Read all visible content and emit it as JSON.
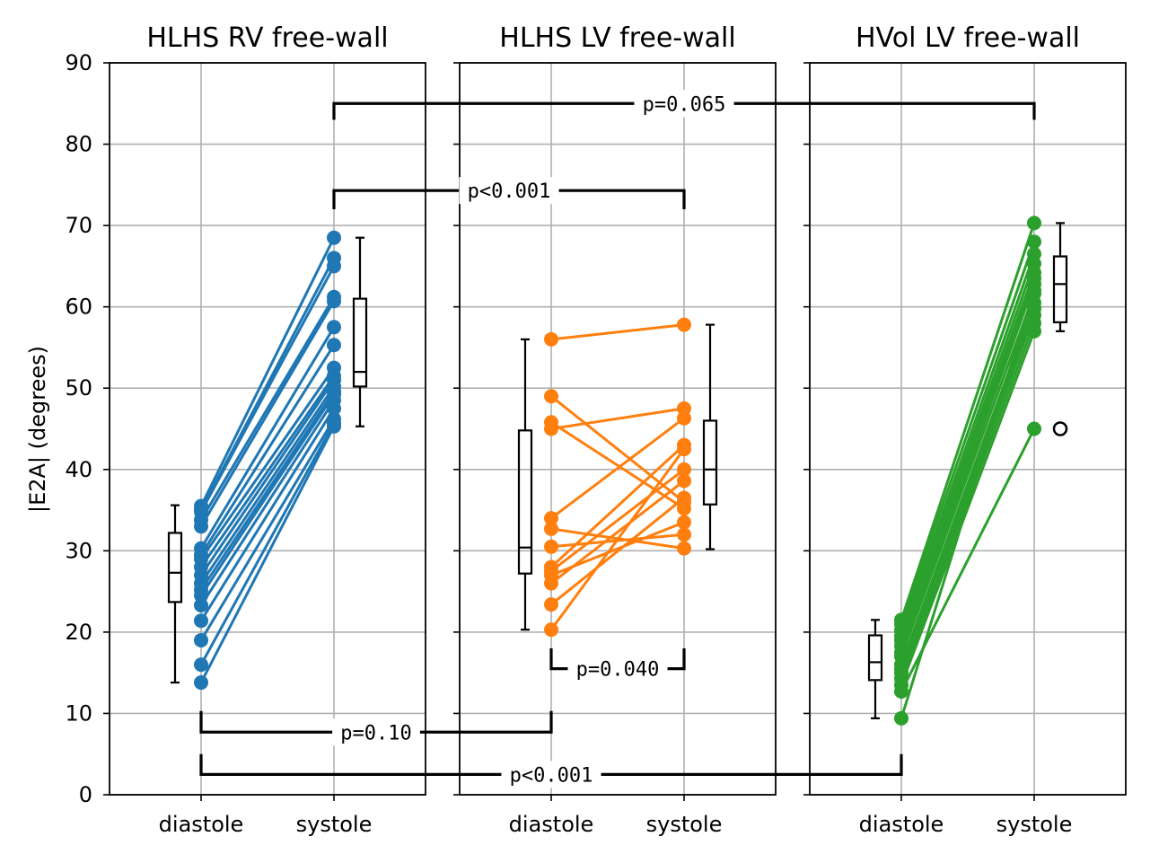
{
  "chart_data": {
    "type": "line",
    "ylabel": "|E2A| (degrees)",
    "ylim": [
      0,
      90
    ],
    "yticks": [
      "0",
      "10",
      "20",
      "30",
      "40",
      "50",
      "60",
      "70",
      "80",
      "90"
    ],
    "grid": true,
    "panels": [
      {
        "title": "HLHS RV free-wall",
        "color": "#1f77b4",
        "categories": [
          "diastole",
          "systole"
        ],
        "pairs": [
          [
            35.5,
            68.5
          ],
          [
            35.0,
            66.0
          ],
          [
            34.8,
            65.0
          ],
          [
            33.8,
            61.2
          ],
          [
            33.0,
            60.7
          ],
          [
            30.3,
            57.5
          ],
          [
            29.5,
            55.3
          ],
          [
            29.0,
            52.5
          ],
          [
            28.0,
            51.5
          ],
          [
            27.0,
            51.0
          ],
          [
            26.0,
            50.2
          ],
          [
            25.2,
            49.6
          ],
          [
            24.5,
            49.2
          ],
          [
            23.3,
            48.5
          ],
          [
            21.4,
            47.5
          ],
          [
            19.0,
            46.2
          ],
          [
            16.0,
            45.7
          ],
          [
            13.8,
            45.3
          ]
        ],
        "boxes": [
          {
            "category": "diastole",
            "side": "left",
            "whisker_low": 13.8,
            "q1": 23.7,
            "median": 27.3,
            "q3": 32.2,
            "whisker_high": 35.6,
            "outliers": []
          },
          {
            "category": "systole",
            "side": "right",
            "whisker_low": 45.3,
            "q1": 50.2,
            "median": 52.0,
            "q3": 61.0,
            "whisker_high": 68.5,
            "outliers": []
          }
        ]
      },
      {
        "title": "HLHS LV free-wall",
        "color": "#ff7f0e",
        "categories": [
          "diastole",
          "systole"
        ],
        "pairs": [
          [
            56.0,
            57.8
          ],
          [
            49.0,
            36.0
          ],
          [
            45.8,
            35.2
          ],
          [
            45.0,
            47.5
          ],
          [
            34.0,
            46.3
          ],
          [
            32.7,
            30.3
          ],
          [
            30.5,
            32.0
          ],
          [
            28.0,
            43.0
          ],
          [
            27.5,
            40.0
          ],
          [
            27.0,
            33.5
          ],
          [
            26.0,
            38.6
          ],
          [
            23.4,
            36.5
          ],
          [
            20.3,
            42.5
          ]
        ],
        "boxes": [
          {
            "category": "diastole",
            "side": "left",
            "whisker_low": 20.3,
            "q1": 27.2,
            "median": 30.4,
            "q3": 44.8,
            "whisker_high": 56.0,
            "outliers": []
          },
          {
            "category": "systole",
            "side": "right",
            "whisker_low": 30.2,
            "q1": 35.7,
            "median": 40.0,
            "q3": 46.0,
            "whisker_high": 57.8,
            "outliers": []
          }
        ]
      },
      {
        "title": "HVol LV free-wall",
        "color": "#2ca02c",
        "categories": [
          "diastole",
          "systole"
        ],
        "pairs": [
          [
            21.5,
            70.3
          ],
          [
            21.0,
            68.0
          ],
          [
            20.2,
            66.5
          ],
          [
            19.5,
            65.3
          ],
          [
            19.0,
            64.2
          ],
          [
            18.3,
            63.5
          ],
          [
            17.5,
            62.8
          ],
          [
            17.0,
            61.6
          ],
          [
            16.0,
            60.5
          ],
          [
            15.5,
            59.8
          ],
          [
            15.0,
            59.0
          ],
          [
            14.3,
            58.0
          ],
          [
            13.5,
            57.0
          ],
          [
            12.7,
            45.0
          ],
          [
            9.4,
            62.0
          ]
        ],
        "boxes": [
          {
            "category": "diastole",
            "side": "left",
            "whisker_low": 9.4,
            "q1": 14.1,
            "median": 16.3,
            "q3": 19.6,
            "whisker_high": 21.5,
            "outliers": []
          },
          {
            "category": "systole",
            "side": "right",
            "whisker_low": 57.0,
            "q1": 58.1,
            "median": 62.8,
            "q3": 66.2,
            "whisker_high": 70.3,
            "outliers": [
              45.0
            ]
          }
        ]
      }
    ],
    "annotations": [
      {
        "label": "p=0.065",
        "from": {
          "panel": 0,
          "category": "systole"
        },
        "to": {
          "panel": 2,
          "category": "systole"
        },
        "y": 85,
        "drop": 83,
        "direction": "above"
      },
      {
        "label": "p<0.001",
        "from": {
          "panel": 0,
          "category": "systole"
        },
        "to": {
          "panel": 1,
          "category": "systole"
        },
        "y": 74.3,
        "drop": 72,
        "direction": "above"
      },
      {
        "label": "p=0.040",
        "from": {
          "panel": 1,
          "category": "diastole"
        },
        "to": {
          "panel": 1,
          "category": "systole"
        },
        "y": 15.5,
        "drop": 18,
        "direction": "below"
      },
      {
        "label": "p=0.10",
        "from": {
          "panel": 0,
          "category": "diastole"
        },
        "to": {
          "panel": 1,
          "category": "diastole"
        },
        "y": 7.7,
        "drop": 10.3,
        "direction": "below"
      },
      {
        "label": "p<0.001",
        "from": {
          "panel": 0,
          "category": "diastole"
        },
        "to": {
          "panel": 2,
          "category": "diastole"
        },
        "y": 2.5,
        "drop": 5,
        "direction": "below"
      }
    ]
  }
}
